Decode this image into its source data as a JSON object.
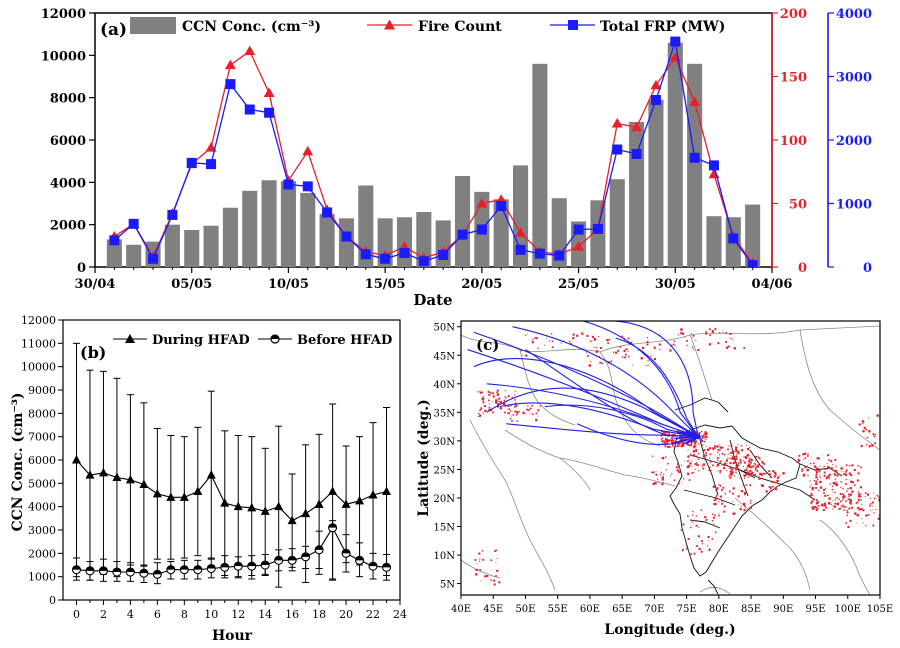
{
  "chart_data": [
    {
      "panel": "(a)",
      "type": "bar+line",
      "title": "",
      "xlabel": "Date",
      "x_tick_labels": [
        "30/04",
        "05/05",
        "10/05",
        "15/05",
        "20/05",
        "25/05",
        "30/05",
        "04/06"
      ],
      "x_tick_days": [
        0,
        5,
        10,
        15,
        20,
        25,
        30,
        35
      ],
      "xlim": [
        0,
        35
      ],
      "days": [
        1,
        2,
        3,
        4,
        5,
        6,
        7,
        8,
        9,
        10,
        11,
        12,
        13,
        14,
        15,
        16,
        17,
        18,
        19,
        20,
        21,
        22,
        23,
        24,
        25,
        26,
        27,
        28,
        29,
        30,
        31,
        32,
        33,
        34
      ],
      "left_axis": {
        "label": "",
        "ylim": [
          0,
          12000
        ],
        "ticks": [
          "0",
          "2000",
          "4000",
          "6000",
          "8000",
          "10000",
          "12000"
        ],
        "color": "#000000"
      },
      "right_axis_1": {
        "label": "",
        "ylim": [
          0,
          200
        ],
        "ticks": [
          "0",
          "50",
          "100",
          "150",
          "200"
        ],
        "color": "#e8202a"
      },
      "right_axis_2": {
        "label": "",
        "ylim": [
          0,
          4000
        ],
        "ticks": [
          "0",
          "1000",
          "2000",
          "3000",
          "4000"
        ],
        "color": "#1a1aff"
      },
      "series": [
        {
          "name": "CCN Conc. (cm⁻³)",
          "kind": "bar",
          "axis": "left",
          "color": "#808080",
          "values": [
            1300,
            1050,
            1200,
            2000,
            1750,
            1950,
            2800,
            3600,
            4100,
            4050,
            3500,
            2500,
            2300,
            3850,
            2300,
            2350,
            2600,
            2200,
            4300,
            3550,
            3200,
            4800,
            9600,
            3250,
            2150,
            3150,
            4150,
            6850,
            7900,
            10600,
            9600,
            2400,
            2350,
            2950
          ]
        },
        {
          "name": "Fire Count",
          "kind": "line",
          "axis": "right_axis_1",
          "color": "#e8202a",
          "marker": "triangle",
          "values": [
            24,
            34,
            8,
            42,
            81,
            94,
            159,
            170,
            137,
            68,
            91,
            45,
            24,
            12,
            9,
            16,
            7,
            12,
            25,
            50,
            53,
            27,
            12,
            10,
            16,
            30,
            113,
            110,
            143,
            165,
            130,
            73,
            24,
            3
          ]
        },
        {
          "name": "Total FRP (MW)",
          "kind": "line",
          "axis": "right_axis_2",
          "color": "#1a1aff",
          "marker": "square",
          "values": [
            420,
            680,
            130,
            820,
            1640,
            1620,
            2880,
            2480,
            2430,
            1300,
            1270,
            860,
            480,
            200,
            130,
            220,
            90,
            190,
            510,
            590,
            960,
            270,
            210,
            180,
            590,
            600,
            1850,
            1780,
            2630,
            3550,
            1720,
            1600,
            450,
            30
          ]
        }
      ]
    },
    {
      "panel": "(b)",
      "type": "line",
      "xlabel": "Hour",
      "ylabel": "CCN Conc. (cm⁻³)",
      "xlim": [
        -1,
        24
      ],
      "ylim": [
        0,
        12000
      ],
      "x_ticks": [
        "0",
        "2",
        "4",
        "6",
        "8",
        "10",
        "12",
        "14",
        "16",
        "18",
        "20",
        "22",
        "24"
      ],
      "y_ticks": [
        "0",
        "1000",
        "2000",
        "3000",
        "4000",
        "5000",
        "6000",
        "7000",
        "8000",
        "9000",
        "10000",
        "11000",
        "12000"
      ],
      "x": [
        0,
        1,
        2,
        3,
        4,
        5,
        6,
        7,
        8,
        9,
        10,
        11,
        12,
        13,
        14,
        15,
        16,
        17,
        18,
        19,
        20,
        21,
        22,
        23
      ],
      "series": [
        {
          "name": "During HFAD",
          "marker": "triangle",
          "values": [
            6000,
            5350,
            5450,
            5250,
            5150,
            4950,
            4550,
            4400,
            4400,
            4650,
            5350,
            4150,
            4000,
            3950,
            3800,
            4000,
            3400,
            3700,
            4100,
            4650,
            4100,
            4250,
            4500,
            4650
          ],
          "err_upper": [
            11000,
            9850,
            9800,
            9500,
            8800,
            8450,
            7350,
            7050,
            7000,
            7400,
            8950,
            7250,
            7050,
            7000,
            6500,
            7450,
            5400,
            6650,
            7100,
            8400,
            6600,
            7000,
            7600,
            8250
          ],
          "err_lower": [
            1000,
            850,
            1100,
            1000,
            1500,
            1450,
            1750,
            1750,
            1800,
            1900,
            1750,
            1050,
            950,
            900,
            1100,
            550,
            1400,
            750,
            1100,
            900,
            1600,
            1500,
            1400,
            1050
          ]
        },
        {
          "name": "Before HFAD",
          "marker": "half-circle",
          "values": [
            1300,
            1250,
            1250,
            1200,
            1200,
            1150,
            1100,
            1300,
            1300,
            1300,
            1350,
            1400,
            1450,
            1450,
            1500,
            1700,
            1700,
            1850,
            2150,
            3100,
            2000,
            1700,
            1450,
            1400
          ],
          "err_upper": [
            1800,
            1650,
            1750,
            1650,
            1600,
            1500,
            1600,
            1650,
            1700,
            1700,
            1800,
            1900,
            1850,
            1900,
            1950,
            2150,
            2200,
            2300,
            2950,
            3400,
            2800,
            2450,
            2000,
            1950
          ],
          "err_lower": [
            850,
            850,
            800,
            800,
            800,
            750,
            700,
            900,
            900,
            900,
            950,
            950,
            1000,
            1050,
            1050,
            1250,
            1250,
            1350,
            1350,
            850,
            1200,
            1000,
            900,
            850
          ]
        }
      ]
    },
    {
      "panel": "(c)",
      "type": "map",
      "xlabel": "Longitude (deg.)",
      "ylabel": "Latitude (deg.)",
      "xlim": [
        40,
        105
      ],
      "ylim": [
        3,
        51
      ],
      "x_ticks": [
        "40E",
        "45E",
        "50E",
        "55E",
        "60E",
        "65E",
        "70E",
        "75E",
        "80E",
        "85E",
        "90E",
        "95E",
        "100E",
        "105E"
      ],
      "y_ticks": [
        "5N",
        "10N",
        "15N",
        "20N",
        "25N",
        "30N",
        "35N",
        "40N",
        "45N",
        "50N"
      ],
      "trajectory_endpoint": [
        76.8,
        30.7
      ]
    }
  ]
}
